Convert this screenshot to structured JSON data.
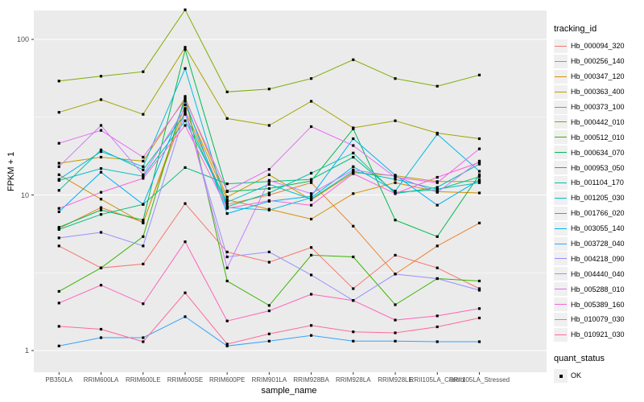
{
  "chart_data": {
    "type": "line",
    "title": "",
    "xlabel": "sample_name",
    "ylabel": "FPKM + 1",
    "legend_title": "tracking_id",
    "y_scale": "log10",
    "y_ticks": [
      1,
      10,
      100
    ],
    "y_tick_labels": [
      "1",
      "10",
      "100"
    ],
    "y_minor_ticks": [
      3.1623,
      31.623
    ],
    "ylim_log": [
      0.93,
      180
    ],
    "grid": "on",
    "legend_position": "right",
    "panel_bg": "#EBEBEB",
    "grid_color": "#FFFFFF",
    "tick_label_color": "#4D4D4D",
    "marker": "black-square",
    "categories": [
      "PB350LA",
      "RRIM600LA",
      "RRIM600LE",
      "RRIM600SE",
      "RRIM600PE",
      "RRIM901LA",
      "RRIM928BA",
      "RRIM928LA",
      "RRIM928LE",
      "RRII105LA_Control",
      "RRII105LA_Stressed"
    ],
    "series": [
      {
        "name": "Hb_000094_320",
        "color": "#F8766D",
        "values": [
          4.7,
          3.4,
          3.6,
          8.8,
          4.3,
          3.7,
          4.6,
          2.5,
          4.1,
          3.4,
          2.5
        ]
      },
      {
        "name": "Hb_000256_140",
        "color": "#EA8331",
        "values": [
          6.1,
          8.3,
          6.7,
          35,
          8.7,
          10.0,
          12.0,
          6.3,
          3.1,
          4.7,
          6.6
        ]
      },
      {
        "name": "Hb_000347_120",
        "color": "#D89000",
        "values": [
          13.5,
          9.4,
          6.6,
          38,
          9.3,
          8.1,
          7.0,
          10.2,
          12.0,
          10.5,
          10.3
        ]
      },
      {
        "name": "Hb_000363_400",
        "color": "#C09B00",
        "values": [
          16,
          17.5,
          16.5,
          42,
          9.7,
          13.5,
          9.3,
          13.9,
          13.3,
          12.2,
          12.2
        ]
      },
      {
        "name": "Hb_000373_100",
        "color": "#A3A500",
        "values": [
          34,
          41,
          33,
          89,
          31,
          28,
          40,
          27,
          30,
          25,
          23
        ]
      },
      {
        "name": "Hb_000442_010",
        "color": "#7CAE00",
        "values": [
          54,
          58,
          62,
          155,
          46,
          48,
          56,
          74,
          56,
          50,
          59
        ]
      },
      {
        "name": "Hb_000512_010",
        "color": "#39B600",
        "values": [
          2.4,
          3.4,
          5.4,
          43,
          2.8,
          1.95,
          4.1,
          4.0,
          1.97,
          2.9,
          2.8
        ]
      },
      {
        "name": "Hb_000634_070",
        "color": "#00BB4E",
        "values": [
          6.2,
          8.0,
          6.9,
          86,
          10.5,
          11.0,
          12.3,
          26.6,
          6.9,
          5.4,
          13.5
        ]
      },
      {
        "name": "Hb_000953_050",
        "color": "#00BF7D",
        "values": [
          6.0,
          7.5,
          8.7,
          15,
          11.8,
          12.2,
          12.6,
          17.5,
          10.4,
          10.8,
          13.1
        ]
      },
      {
        "name": "Hb_001104_170",
        "color": "#00C1A3",
        "values": [
          10.7,
          19.5,
          14.5,
          33,
          8.4,
          10.3,
          13.8,
          18.6,
          10.2,
          11.2,
          15.8
        ]
      },
      {
        "name": "Hb_001205_030",
        "color": "#00BFC4",
        "values": [
          12.4,
          14.8,
          13.2,
          30,
          9.0,
          11.7,
          9.4,
          14.2,
          12.6,
          10.9,
          12.0
        ]
      },
      {
        "name": "Hb_001766_020",
        "color": "#00BAE0",
        "values": [
          12.6,
          19.0,
          15.2,
          65,
          8.3,
          8.0,
          9.6,
          15.2,
          10.6,
          24.6,
          14.2
        ]
      },
      {
        "name": "Hb_003055_140",
        "color": "#00B0F6",
        "values": [
          7.8,
          14.0,
          8.7,
          40,
          7.6,
          9.1,
          9.8,
          23.0,
          13.4,
          8.6,
          12.5
        ]
      },
      {
        "name": "Hb_003728_040",
        "color": "#35A2FF",
        "values": [
          1.07,
          1.21,
          1.21,
          1.65,
          1.07,
          1.15,
          1.25,
          1.15,
          1.15,
          1.14,
          1.14
        ]
      },
      {
        "name": "Hb_004218_090",
        "color": "#9590FF",
        "values": [
          5.3,
          5.75,
          4.7,
          34,
          4.0,
          4.3,
          3.06,
          2.1,
          3.1,
          2.9,
          2.44
        ]
      },
      {
        "name": "Hb_004440_040",
        "color": "#C77CFF",
        "values": [
          15.2,
          28,
          13.5,
          36,
          3.4,
          12.4,
          10.2,
          14.5,
          13.2,
          10.4,
          16.5
        ]
      },
      {
        "name": "Hb_005288_010",
        "color": "#E76BF3",
        "values": [
          21.5,
          26,
          17.5,
          41,
          10.6,
          14.6,
          27.5,
          20.8,
          13.0,
          12.0,
          19.8
        ]
      },
      {
        "name": "Hb_005389_160",
        "color": "#FA62DB",
        "values": [
          8.2,
          10.4,
          12.8,
          28,
          8.2,
          9.2,
          8.6,
          13.7,
          10.2,
          13.0,
          16.2
        ]
      },
      {
        "name": "Hb_010079_030",
        "color": "#FF62BC",
        "values": [
          2.02,
          2.63,
          2.0,
          5.0,
          1.55,
          1.8,
          2.3,
          2.1,
          1.57,
          1.67,
          1.86
        ]
      },
      {
        "name": "Hb_010921_030",
        "color": "#FF6A98",
        "values": [
          1.43,
          1.37,
          1.14,
          2.35,
          1.1,
          1.28,
          1.45,
          1.32,
          1.3,
          1.42,
          1.62
        ]
      }
    ],
    "quant_legend": {
      "title": "quant_status",
      "items": [
        {
          "label": "OK",
          "marker": "black-square"
        }
      ]
    }
  }
}
